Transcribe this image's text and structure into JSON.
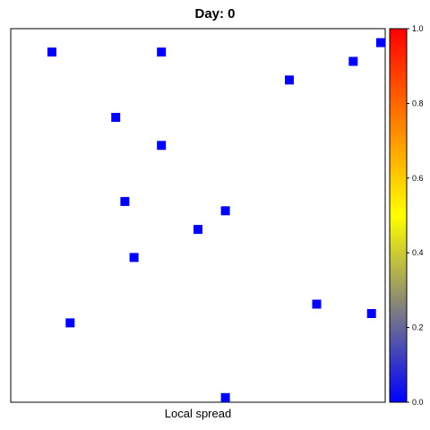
{
  "chart_data": {
    "type": "scatter",
    "title": "Day: 0",
    "xlabel": "Local spread",
    "ylabel": "",
    "xlim": [
      0,
      41
    ],
    "ylim": [
      0,
      40
    ],
    "x_ticks_shown": false,
    "y_ticks_shown": false,
    "grid": false,
    "marker": "square",
    "points": [
      {
        "x": 4.5,
        "y": 37.5,
        "value": 0.0
      },
      {
        "x": 16.5,
        "y": 37.5,
        "value": 0.0
      },
      {
        "x": 40.5,
        "y": 38.5,
        "value": 0.0
      },
      {
        "x": 37.5,
        "y": 36.5,
        "value": 0.0
      },
      {
        "x": 30.5,
        "y": 34.5,
        "value": 0.0
      },
      {
        "x": 11.5,
        "y": 30.5,
        "value": 0.0
      },
      {
        "x": 16.5,
        "y": 27.5,
        "value": 0.0
      },
      {
        "x": 12.5,
        "y": 21.5,
        "value": 0.0
      },
      {
        "x": 23.5,
        "y": 20.5,
        "value": 0.0
      },
      {
        "x": 20.5,
        "y": 18.5,
        "value": 0.0
      },
      {
        "x": 13.5,
        "y": 15.5,
        "value": 0.0
      },
      {
        "x": 33.5,
        "y": 10.5,
        "value": 0.0
      },
      {
        "x": 39.5,
        "y": 9.5,
        "value": 0.0
      },
      {
        "x": 6.5,
        "y": 8.5,
        "value": 0.0
      },
      {
        "x": 23.5,
        "y": 0.5,
        "value": 0.0
      }
    ],
    "colorbar": {
      "min": 0.0,
      "max": 1.0,
      "ticks": [
        "0.0",
        "0.2",
        "0.4",
        "0.6",
        "0.8",
        "1.0"
      ],
      "tick_values": [
        0.0,
        0.2,
        0.4,
        0.6,
        0.8,
        1.0
      ],
      "colors": [
        "#0000ff",
        "#ffff00",
        "#ff0000"
      ],
      "position": "right"
    }
  }
}
